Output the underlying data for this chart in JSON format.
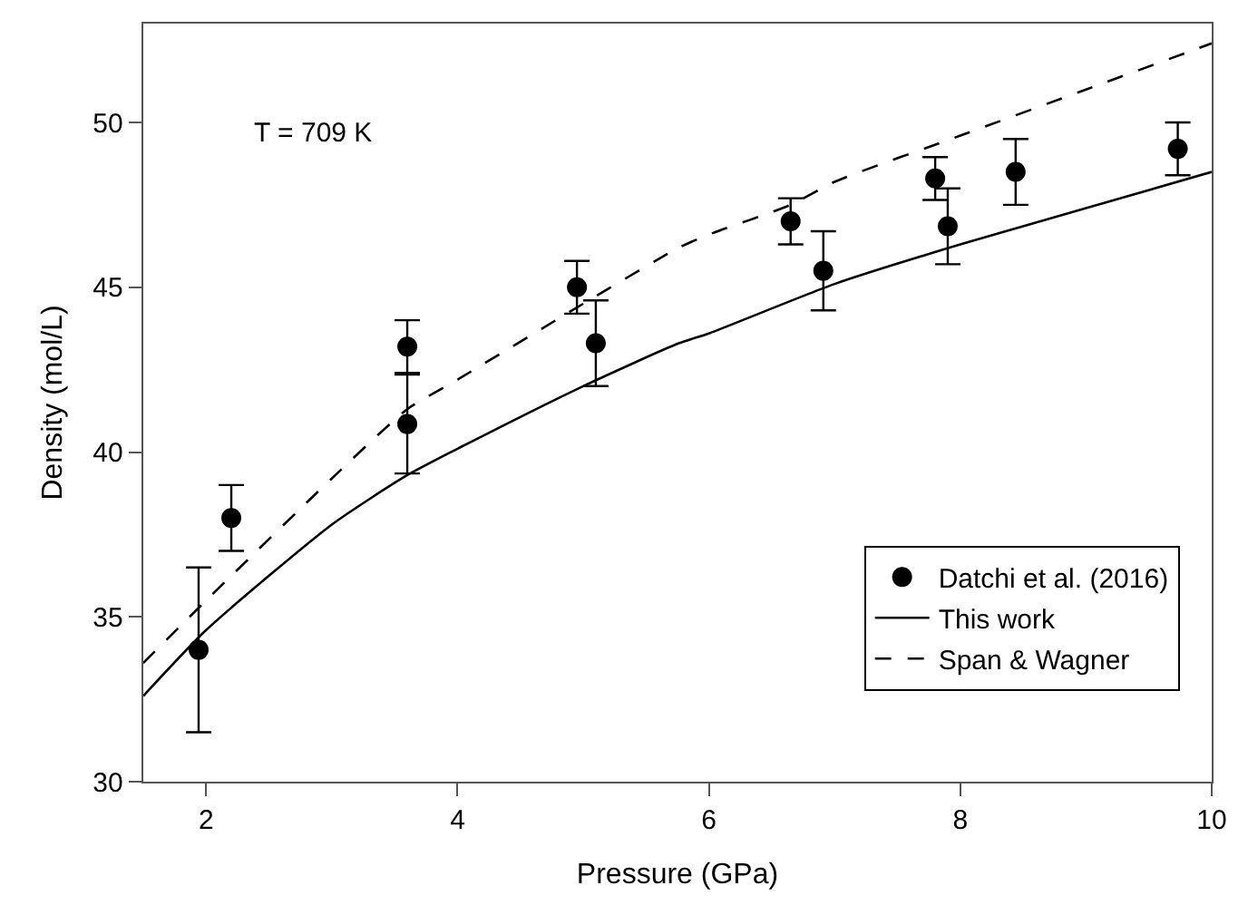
{
  "chart_data": {
    "type": "scatter",
    "xlabel": "Pressure (GPa)",
    "ylabel": "Density (mol/L)",
    "xlim": [
      1.5,
      10
    ],
    "ylim": [
      30,
      53
    ],
    "xticks": [
      2,
      4,
      6,
      8,
      10
    ],
    "yticks": [
      30,
      35,
      40,
      45,
      50
    ],
    "grid": false,
    "legend": "bottom right",
    "annotations": [
      "T = 709 K"
    ],
    "series": [
      {
        "name": "Datchi et al. (2016)",
        "color": "#000000",
        "marker": "circle",
        "x": [
          1.94,
          2.2,
          3.6,
          3.6,
          4.95,
          5.1,
          6.65,
          6.91,
          7.8,
          7.9,
          8.44,
          9.73
        ],
        "values": [
          34.0,
          38.0,
          43.2,
          40.85,
          45.0,
          43.3,
          47.0,
          45.5,
          48.3,
          46.85,
          48.5,
          49.2
        ],
        "errors": [
          [
            31.5,
            36.5
          ],
          1.0,
          0.8,
          1.5,
          0.8,
          1.3,
          0.7,
          1.2,
          0.65,
          1.15,
          1.0,
          0.8
        ]
      },
      {
        "name": "This work",
        "type": "line",
        "color": "#000000",
        "line_style": "solid",
        "x": [
          1.5,
          2,
          3,
          3.6,
          4,
          5,
          5.76,
          6,
          7,
          8,
          9,
          10
        ],
        "values": [
          32.6,
          34.6,
          37.8,
          39.3,
          40.1,
          42.0,
          43.3,
          43.6,
          45.1,
          46.3,
          47.4,
          48.5
        ]
      },
      {
        "name": "Span & Wagner",
        "type": "line",
        "color": "#000000",
        "line_style": "dashed",
        "x": [
          1.5,
          2,
          3,
          3.6,
          4,
          5,
          5.76,
          6,
          6.65,
          7,
          8,
          9,
          10
        ],
        "values": [
          33.6,
          35.5,
          39.2,
          41.3,
          42.2,
          44.5,
          46.2,
          46.6,
          47.5,
          48.2,
          49.6,
          51.0,
          52.4
        ]
      }
    ]
  }
}
